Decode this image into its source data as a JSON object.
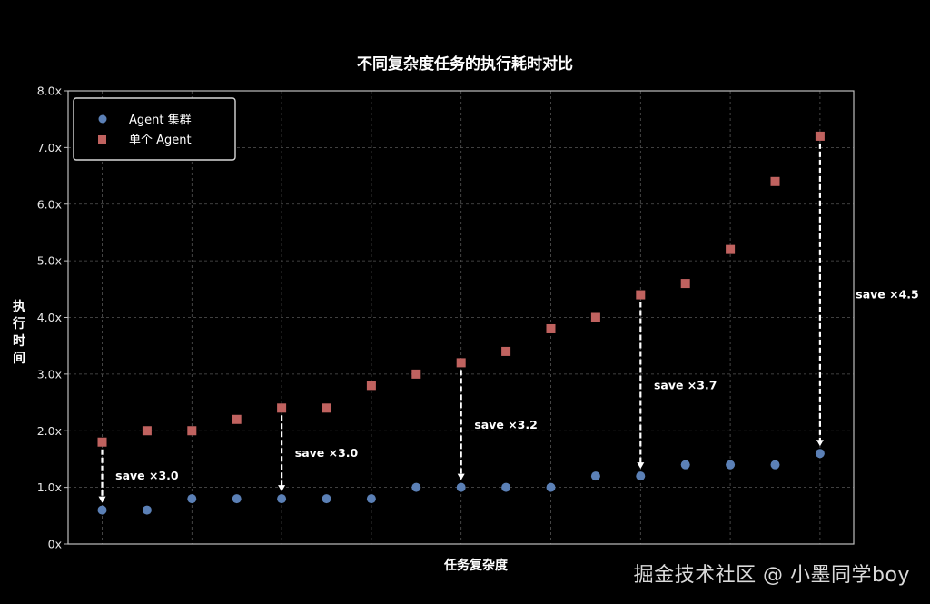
{
  "chart_data": {
    "type": "scatter",
    "title": "不同复杂度任务的执行耗时对比",
    "xlabel": "任务复杂度",
    "ylabel": "执行时间",
    "ylim": [
      0,
      8
    ],
    "yticks": [
      "0x",
      "1.0x",
      "2.0x",
      "3.0x",
      "4.0x",
      "5.0x",
      "6.0x",
      "7.0x",
      "8.0x"
    ],
    "yticks_values": [
      0,
      1,
      2,
      3,
      4,
      5,
      6,
      7,
      8
    ],
    "x": [
      1,
      2,
      3,
      4,
      5,
      6,
      7,
      8,
      9,
      10,
      11,
      12,
      13,
      14,
      15,
      16,
      17
    ],
    "grid": true,
    "legend_placement": "top-left",
    "series": [
      {
        "name": "Agent 集群",
        "marker": "circle",
        "color": "#5b80b6",
        "values": [
          0.6,
          0.6,
          0.8,
          0.8,
          0.8,
          0.8,
          0.8,
          1.0,
          1.0,
          1.0,
          1.0,
          1.2,
          1.2,
          1.4,
          1.4,
          1.4,
          1.6
        ]
      },
      {
        "name": "单个 Agent",
        "marker": "square",
        "color": "#c0625f",
        "values": [
          1.8,
          2.0,
          2.0,
          2.2,
          2.4,
          2.4,
          2.8,
          3.0,
          3.2,
          3.4,
          3.8,
          4.0,
          4.4,
          4.6,
          5.2,
          6.4,
          7.2
        ]
      }
    ],
    "annotations": [
      {
        "x": 1,
        "from": 1.8,
        "to": 0.6,
        "text": "save ×3.0",
        "text_x": 2.0,
        "text_y": 1.2
      },
      {
        "x": 5,
        "from": 2.4,
        "to": 0.8,
        "text": "save ×3.0",
        "text_x": 6.0,
        "text_y": 1.6
      },
      {
        "x": 9,
        "from": 3.2,
        "to": 1.0,
        "text": "save ×3.2",
        "text_x": 10.0,
        "text_y": 2.1
      },
      {
        "x": 13,
        "from": 4.4,
        "to": 1.2,
        "text": "save ×3.7",
        "text_x": 14.0,
        "text_y": 2.8
      },
      {
        "x": 17,
        "from": 7.2,
        "to": 1.6,
        "text": "save ×4.5",
        "text_x": 18.5,
        "text_y": 4.4
      }
    ]
  },
  "watermark": "掘金技术社区 @ 小墨同学boy"
}
